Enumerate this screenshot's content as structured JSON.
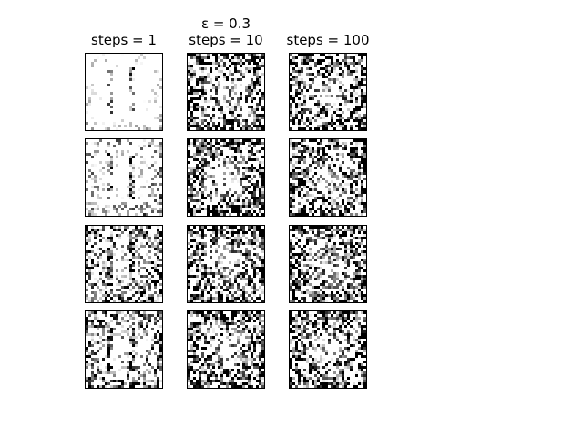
{
  "figure": {
    "suptitle": "ε = 0.3",
    "columns": [
      {
        "title": "steps = 1"
      },
      {
        "title": "steps = 10"
      },
      {
        "title": "steps = 100"
      }
    ],
    "rows": 4,
    "image_grid_size": 28,
    "colormap": "gray"
  }
}
